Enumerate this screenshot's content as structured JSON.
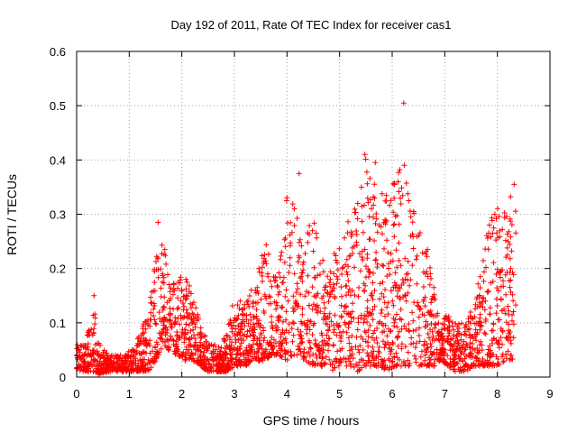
{
  "chart_data": {
    "type": "scatter",
    "title": "Day 192 of 2011, Rate Of TEC Index for receiver cas1",
    "xlabel": "GPS time / hours",
    "ylabel": "ROTI / TECUs",
    "xlim": [
      0,
      9
    ],
    "ylim": [
      0,
      0.6
    ],
    "xticks": [
      0,
      1,
      2,
      3,
      4,
      5,
      6,
      7,
      8,
      9
    ],
    "yticks": [
      0,
      0.1,
      0.2,
      0.3,
      0.4,
      0.5,
      0.6
    ],
    "grid": true,
    "marker": "+",
    "series_color": "#ff0000",
    "series": [
      {
        "name": "cas1",
        "envelope": {
          "x": [
            0.0,
            0.15,
            0.3,
            0.32,
            0.4,
            0.6,
            0.8,
            1.0,
            1.2,
            1.35,
            1.45,
            1.55,
            1.65,
            1.75,
            1.9,
            2.05,
            2.2,
            2.35,
            2.5,
            2.7,
            2.85,
            3.0,
            3.2,
            3.4,
            3.6,
            3.7,
            3.85,
            4.0,
            4.1,
            4.2,
            4.35,
            4.5,
            4.6,
            4.75,
            4.9,
            5.05,
            5.2,
            5.35,
            5.5,
            5.6,
            5.75,
            5.9,
            6.05,
            6.2,
            6.35,
            6.5,
            6.65,
            6.8,
            6.9,
            7.05,
            7.2,
            7.4,
            7.55,
            7.7,
            7.85,
            8.0,
            8.15,
            8.3,
            8.35
          ],
          "y_low": [
            0.01,
            0.01,
            0.01,
            0.01,
            0.005,
            0.01,
            0.01,
            0.01,
            0.01,
            0.01,
            0.02,
            0.04,
            0.06,
            0.05,
            0.04,
            0.03,
            0.03,
            0.02,
            0.01,
            0.01,
            0.01,
            0.02,
            0.02,
            0.03,
            0.03,
            0.04,
            0.04,
            0.03,
            0.04,
            0.04,
            0.03,
            0.02,
            0.02,
            0.02,
            0.01,
            0.02,
            0.02,
            0.01,
            0.02,
            0.02,
            0.02,
            0.01,
            0.02,
            0.02,
            0.02,
            0.02,
            0.02,
            0.02,
            0.03,
            0.02,
            0.01,
            0.01,
            0.02,
            0.02,
            0.02,
            0.02,
            0.03,
            0.03,
            0.03
          ],
          "y_high": [
            0.06,
            0.06,
            0.12,
            0.15,
            0.07,
            0.04,
            0.04,
            0.05,
            0.08,
            0.12,
            0.18,
            0.28,
            0.25,
            0.2,
            0.17,
            0.2,
            0.16,
            0.1,
            0.06,
            0.06,
            0.08,
            0.15,
            0.14,
            0.18,
            0.26,
            0.2,
            0.2,
            0.34,
            0.37,
            0.3,
            0.27,
            0.33,
            0.24,
            0.2,
            0.25,
            0.24,
            0.31,
            0.34,
            0.41,
            0.39,
            0.34,
            0.35,
            0.37,
            0.39,
            0.33,
            0.28,
            0.25,
            0.17,
            0.09,
            0.12,
            0.1,
            0.1,
            0.14,
            0.2,
            0.3,
            0.34,
            0.3,
            0.36,
            0.35
          ]
        },
        "notable_points": [
          {
            "x": 0.33,
            "y": 0.15
          },
          {
            "x": 1.55,
            "y": 0.285
          },
          {
            "x": 4.23,
            "y": 0.375
          },
          {
            "x": 5.48,
            "y": 0.41
          },
          {
            "x": 5.68,
            "y": 0.395
          },
          {
            "x": 6.23,
            "y": 0.39
          },
          {
            "x": 6.22,
            "y": 0.505
          },
          {
            "x": 8.32,
            "y": 0.355
          }
        ]
      }
    ]
  }
}
